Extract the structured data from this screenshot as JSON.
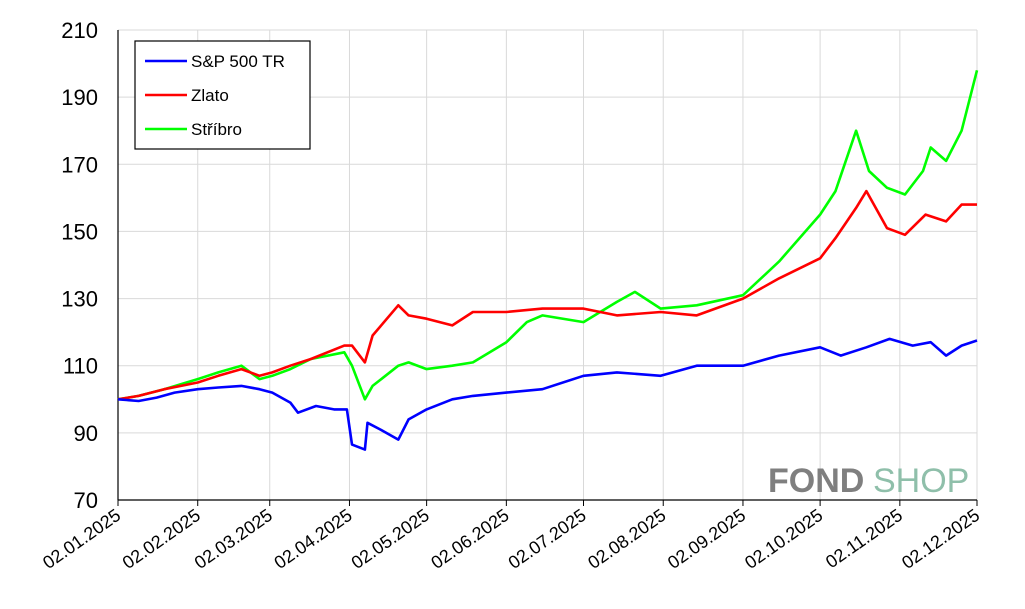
{
  "chart_data": {
    "type": "line",
    "ylim": [
      70,
      210
    ],
    "yticks": [
      70,
      90,
      110,
      130,
      150,
      170,
      190,
      210
    ],
    "x_labels": [
      "02.01.2025",
      "02.02.2025",
      "02.03.2025",
      "02.04.2025",
      "02.05.2025",
      "02.06.2025",
      "02.07.2025",
      "02.08.2025",
      "02.09.2025",
      "02.10.2025",
      "02.11.2025",
      "02.12.2025"
    ],
    "x_range": [
      "2025-01-02",
      "2025-12-02"
    ],
    "grid": true,
    "legend_position": "top-left",
    "series": [
      {
        "name": "S&P 500 TR",
        "color": "#0000ff",
        "points": [
          [
            "2025-01-02",
            100
          ],
          [
            "2025-01-10",
            99.5
          ],
          [
            "2025-01-17",
            100.5
          ],
          [
            "2025-01-24",
            102
          ],
          [
            "2025-02-02",
            103
          ],
          [
            "2025-02-10",
            103.5
          ],
          [
            "2025-02-19",
            104
          ],
          [
            "2025-02-26",
            103
          ],
          [
            "2025-03-03",
            102
          ],
          [
            "2025-03-10",
            99
          ],
          [
            "2025-03-13",
            96
          ],
          [
            "2025-03-20",
            98
          ],
          [
            "2025-03-27",
            97
          ],
          [
            "2025-04-01",
            97
          ],
          [
            "2025-04-03",
            86.5
          ],
          [
            "2025-04-08",
            85
          ],
          [
            "2025-04-09",
            93
          ],
          [
            "2025-04-14",
            91
          ],
          [
            "2025-04-21",
            88
          ],
          [
            "2025-04-25",
            94
          ],
          [
            "2025-05-02",
            97
          ],
          [
            "2025-05-12",
            100
          ],
          [
            "2025-05-20",
            101
          ],
          [
            "2025-06-02",
            102
          ],
          [
            "2025-06-16",
            103
          ],
          [
            "2025-07-02",
            107
          ],
          [
            "2025-07-15",
            108
          ],
          [
            "2025-08-01",
            107
          ],
          [
            "2025-08-15",
            110
          ],
          [
            "2025-09-02",
            110
          ],
          [
            "2025-09-16",
            113
          ],
          [
            "2025-10-02",
            115.5
          ],
          [
            "2025-10-10",
            113
          ],
          [
            "2025-10-20",
            115.5
          ],
          [
            "2025-10-29",
            118
          ],
          [
            "2025-11-07",
            116
          ],
          [
            "2025-11-14",
            117
          ],
          [
            "2025-11-20",
            113
          ],
          [
            "2025-11-26",
            116
          ],
          [
            "2025-12-02",
            117.5
          ]
        ]
      },
      {
        "name": "Zlato",
        "color": "#ff0000",
        "points": [
          [
            "2025-01-02",
            100
          ],
          [
            "2025-01-10",
            101
          ],
          [
            "2025-01-20",
            103
          ],
          [
            "2025-02-02",
            105
          ],
          [
            "2025-02-10",
            107
          ],
          [
            "2025-02-19",
            109
          ],
          [
            "2025-02-26",
            107
          ],
          [
            "2025-03-03",
            108
          ],
          [
            "2025-03-10",
            110
          ],
          [
            "2025-03-18",
            112
          ],
          [
            "2025-03-31",
            116
          ],
          [
            "2025-04-03",
            116
          ],
          [
            "2025-04-08",
            111
          ],
          [
            "2025-04-11",
            119
          ],
          [
            "2025-04-21",
            128
          ],
          [
            "2025-04-25",
            125
          ],
          [
            "2025-05-02",
            124
          ],
          [
            "2025-05-12",
            122
          ],
          [
            "2025-05-20",
            126
          ],
          [
            "2025-06-02",
            126
          ],
          [
            "2025-06-16",
            127
          ],
          [
            "2025-07-02",
            127
          ],
          [
            "2025-07-15",
            125
          ],
          [
            "2025-08-01",
            126
          ],
          [
            "2025-08-15",
            125
          ],
          [
            "2025-09-02",
            130
          ],
          [
            "2025-09-16",
            136
          ],
          [
            "2025-10-02",
            142
          ],
          [
            "2025-10-08",
            148
          ],
          [
            "2025-10-16",
            157
          ],
          [
            "2025-10-20",
            162
          ],
          [
            "2025-10-28",
            151
          ],
          [
            "2025-11-04",
            149
          ],
          [
            "2025-11-12",
            155
          ],
          [
            "2025-11-20",
            153
          ],
          [
            "2025-11-26",
            158
          ],
          [
            "2025-12-02",
            158
          ]
        ]
      },
      {
        "name": "Stříbro",
        "color": "#00ff00",
        "points": [
          [
            "2025-01-02",
            100
          ],
          [
            "2025-01-10",
            101
          ],
          [
            "2025-01-20",
            103
          ],
          [
            "2025-02-02",
            106
          ],
          [
            "2025-02-10",
            108
          ],
          [
            "2025-02-19",
            110
          ],
          [
            "2025-02-26",
            106
          ],
          [
            "2025-03-03",
            107
          ],
          [
            "2025-03-10",
            109
          ],
          [
            "2025-03-18",
            112
          ],
          [
            "2025-03-31",
            114
          ],
          [
            "2025-04-03",
            110
          ],
          [
            "2025-04-08",
            100
          ],
          [
            "2025-04-11",
            104
          ],
          [
            "2025-04-21",
            110
          ],
          [
            "2025-04-25",
            111
          ],
          [
            "2025-05-02",
            109
          ],
          [
            "2025-05-12",
            110
          ],
          [
            "2025-05-20",
            111
          ],
          [
            "2025-06-02",
            117
          ],
          [
            "2025-06-10",
            123
          ],
          [
            "2025-06-16",
            125
          ],
          [
            "2025-07-02",
            123
          ],
          [
            "2025-07-15",
            129
          ],
          [
            "2025-07-22",
            132
          ],
          [
            "2025-08-01",
            127
          ],
          [
            "2025-08-15",
            128
          ],
          [
            "2025-09-02",
            131
          ],
          [
            "2025-09-16",
            141
          ],
          [
            "2025-10-02",
            155
          ],
          [
            "2025-10-08",
            162
          ],
          [
            "2025-10-16",
            180
          ],
          [
            "2025-10-21",
            168
          ],
          [
            "2025-10-28",
            163
          ],
          [
            "2025-11-04",
            161
          ],
          [
            "2025-11-11",
            168
          ],
          [
            "2025-11-14",
            175
          ],
          [
            "2025-11-20",
            171
          ],
          [
            "2025-11-26",
            180
          ],
          [
            "2025-12-02",
            198
          ]
        ]
      }
    ]
  },
  "watermark": {
    "part1": "FOND",
    "part2": "SHOP",
    "color1": "#7f7f7f",
    "color2": "#8fbfaa"
  }
}
